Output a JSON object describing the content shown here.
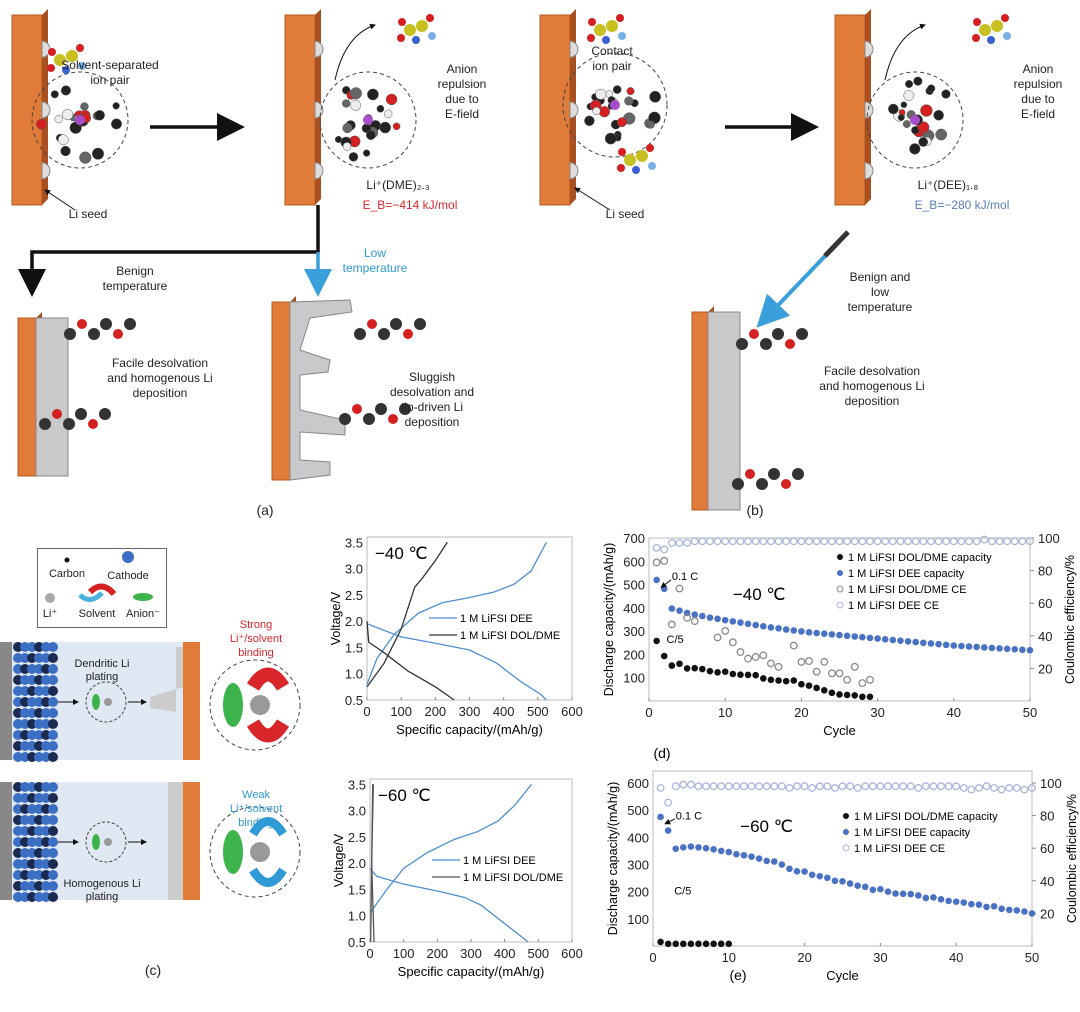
{
  "panel_a": {
    "label": "(a)",
    "ion_pair": "Solvent-separated\nion pair",
    "anion_repulsion": "Anion\nrepulsion\ndue to\nE-field",
    "solvate": "Li⁺(DME)₂.₃",
    "binding_energy": "E_B=−414 kJ/mol",
    "li_seed": "Li seed",
    "benign_temperature": "Benign\ntemperature",
    "low_temperature": "Low\ntemperature",
    "result_benign": "Facile desolvation\nand homogenous Li\ndeposition",
    "result_low": "Sluggish\ndesolvation and\ntip-driven Li\ndeposition"
  },
  "panel_b": {
    "label": "(b)",
    "ion_pair": "Contact\nion pair",
    "anion_repulsion": "Anion\nrepulsion\ndue to\nE-field",
    "solvate": "Li⁺(DEE)₁.₈",
    "binding_energy": "E_B=−280 kJ/mol",
    "li_seed": "Li seed",
    "condition": "Benign and\nlow\ntemperature",
    "result": "Facile desolvation\nand homogenous Li\ndeposition"
  },
  "panel_c": {
    "label": "(c)",
    "legend": {
      "carbon": "Carbon",
      "cathode": "Cathode",
      "li": "Li⁺",
      "solvent": "Solvent",
      "anion": "Anion⁻"
    },
    "dendritic": "Dendritic Li\nplating",
    "strong": "Strong\nLi⁺/solvent\nbinding",
    "homogenous": "Homogenous Li\nplating",
    "weak": "Weak\nLi⁺/solvent\nbinding"
  },
  "colors": {
    "electrode": "#e07b39",
    "dee": "#4a72c4",
    "dee_line": "#4f8fcf",
    "dol": "#111111",
    "ce_dol": "#8a8a8a",
    "ce_dee": "#a9b6dc",
    "strong": "#d8262b",
    "weak": "#2f9ad6"
  },
  "chart_data": [
    {
      "id": "v40",
      "type": "line",
      "annotation": "−40 ℃",
      "xlabel": "Specific capacity/(mAh/g)",
      "ylabel": "Voltage/V",
      "xlim": [
        0,
        600
      ],
      "ylim": [
        0.5,
        3.6
      ],
      "xticks": [
        0,
        100,
        200,
        300,
        400,
        500,
        600
      ],
      "yticks": [
        0.5,
        1.0,
        1.5,
        2.0,
        2.5,
        3.0,
        3.5
      ],
      "legend": "center-right",
      "series": [
        {
          "name": "1 M LiFSI DEE",
          "color": "#4f8fcf",
          "segments": [
            [
              [
                0,
                0.8
              ],
              [
                30,
                1.3
              ],
              [
                80,
                1.75
              ],
              [
                150,
                2.15
              ],
              [
                220,
                2.35
              ],
              [
                300,
                2.45
              ],
              [
                370,
                2.55
              ],
              [
                430,
                2.7
              ],
              [
                480,
                2.95
              ],
              [
                525,
                3.5
              ]
            ],
            [
              [
                0,
                1.95
              ],
              [
                100,
                1.7
              ],
              [
                200,
                1.58
              ],
              [
                300,
                1.45
              ],
              [
                380,
                1.2
              ],
              [
                450,
                0.85
              ],
              [
                510,
                0.6
              ],
              [
                525,
                0.5
              ]
            ]
          ]
        },
        {
          "name": "1 M LiFSI DOL/DME",
          "color": "#333333",
          "segments": [
            [
              [
                0,
                0.75
              ],
              [
                50,
                1.2
              ],
              [
                100,
                1.85
              ],
              [
                140,
                2.65
              ],
              [
                160,
                2.8
              ],
              [
                200,
                3.15
              ],
              [
                235,
                3.5
              ]
            ],
            [
              [
                0,
                2.0
              ],
              [
                5,
                1.6
              ],
              [
                50,
                1.4
              ],
              [
                120,
                1.05
              ],
              [
                200,
                0.75
              ],
              [
                255,
                0.5
              ]
            ]
          ]
        }
      ]
    },
    {
      "id": "v60",
      "type": "line",
      "annotation": "−60 ℃",
      "xlabel": "Specific capacity/(mAh/g)",
      "ylabel": "Voltage/V",
      "xlim": [
        0,
        600
      ],
      "ylim": [
        0.5,
        3.6
      ],
      "xticks": [
        0,
        100,
        200,
        300,
        400,
        500,
        600
      ],
      "yticks": [
        0.5,
        1.0,
        1.5,
        2.0,
        2.5,
        3.0,
        3.5
      ],
      "legend": "center-right",
      "series": [
        {
          "name": "1 M LiFSI DEE",
          "color": "#4f8fcf",
          "segments": [
            [
              [
                0,
                1.05
              ],
              [
                50,
                1.5
              ],
              [
                100,
                1.9
              ],
              [
                170,
                2.2
              ],
              [
                250,
                2.45
              ],
              [
                320,
                2.6
              ],
              [
                380,
                2.8
              ],
              [
                430,
                3.1
              ],
              [
                480,
                3.5
              ]
            ],
            [
              [
                0,
                1.9
              ],
              [
                20,
                1.75
              ],
              [
                100,
                1.6
              ],
              [
                200,
                1.47
              ],
              [
                280,
                1.35
              ],
              [
                330,
                1.2
              ],
              [
                400,
                0.85
              ],
              [
                470,
                0.5
              ]
            ]
          ]
        },
        {
          "name": "1 M LiFSI DOL/DME",
          "color": "#555555",
          "segments": [
            [
              [
                2,
                0.5
              ],
              [
                5,
                2.0
              ],
              [
                10,
                3.5
              ]
            ],
            [
              [
                8,
                3.5
              ],
              [
                5,
                2.0
              ],
              [
                12,
                0.5
              ]
            ]
          ]
        }
      ]
    },
    {
      "id": "c40",
      "type": "scatter",
      "label": "(d)",
      "annotation": "−40 ℃",
      "rate_labels": [
        "0.1 C",
        "C/5"
      ],
      "xlabel": "Cycle",
      "ylabel": "Discharge capacity/(mAh/g)",
      "y2label": "Coulombic efficiency/%",
      "xlim": [
        0,
        50
      ],
      "ylim": [
        0,
        700
      ],
      "y2lim": [
        0,
        100
      ],
      "xticks": [
        0,
        10,
        20,
        30,
        40,
        50
      ],
      "yticks": [
        100,
        200,
        300,
        400,
        500,
        600,
        700
      ],
      "y2ticks": [
        20,
        40,
        60,
        80,
        100
      ],
      "legend": "top-right",
      "series": [
        {
          "name": "1 M LiFSI DOL/DME capacity",
          "axis": "left",
          "marker": "filled",
          "color": "#111111",
          "values": [
            258,
            193,
            152,
            160,
            140,
            141,
            137,
            128,
            123,
            126,
            116,
            113,
            112,
            111,
            97,
            91,
            88,
            85,
            88,
            72,
            66,
            56,
            46,
            35,
            28,
            26,
            24,
            18,
            18
          ]
        },
        {
          "name": "1 M LiFSI DEE capacity",
          "axis": "left",
          "marker": "filled",
          "color": "#4a72c4",
          "values": [
            520,
            482,
            397,
            388,
            378,
            371,
            365,
            358,
            353,
            347,
            342,
            337,
            331,
            326,
            321,
            316,
            312,
            307,
            303,
            299,
            295,
            292,
            289,
            286,
            283,
            280,
            277,
            274,
            271,
            268,
            265,
            262,
            259,
            256,
            253,
            250,
            247,
            244,
            241,
            238,
            236,
            234,
            232,
            230,
            228,
            226,
            224,
            222,
            220,
            218
          ]
        },
        {
          "name": "1 M LiFSI DOL/DME CE",
          "axis": "right",
          "marker": "open",
          "color": "#8a8a8a",
          "values": [
            85,
            86,
            47,
            69,
            51,
            49,
            null,
            null,
            39,
            43,
            36,
            30,
            26,
            27,
            28,
            23,
            21,
            null,
            34,
            24,
            24.5,
            18,
            24,
            17,
            17,
            13,
            21,
            11,
            13
          ]
        },
        {
          "name": "1 M LiFSI DEE CE",
          "axis": "right",
          "marker": "open",
          "color": "#a9b6dc",
          "values": [
            94,
            93,
            97,
            97,
            97,
            98,
            98,
            98,
            98,
            98,
            98,
            98,
            98,
            98,
            98,
            98,
            98,
            98,
            98,
            98,
            98,
            98,
            98,
            98,
            98,
            98,
            98,
            98,
            98,
            98,
            98,
            98,
            98,
            98,
            98,
            98,
            98,
            98,
            98,
            98,
            98,
            98,
            98,
            99,
            98,
            98,
            98,
            98,
            98,
            98
          ]
        }
      ]
    },
    {
      "id": "c60",
      "type": "scatter",
      "label": "(e)",
      "annotation": "−60 ℃",
      "rate_labels": [
        "0.1 C",
        "C/5"
      ],
      "xlabel": "Cycle",
      "ylabel": "Discharge capacity/(mAh/g)",
      "y2label": "Coulombic efficiency/%",
      "xlim": [
        0,
        50
      ],
      "ylim": [
        0,
        600
      ],
      "y2lim": [
        0,
        100
      ],
      "xticks": [
        0,
        10,
        20,
        30,
        40,
        50
      ],
      "yticks": [
        100,
        200,
        300,
        400,
        500,
        600
      ],
      "y2ticks": [
        20,
        40,
        60,
        80,
        100
      ],
      "legend": "top-right",
      "series": [
        {
          "name": "1 M LiFSI DOL/DME capacity",
          "axis": "left",
          "marker": "filled",
          "color": "#111111",
          "values": [
            15,
            8,
            8,
            8,
            8,
            8,
            8,
            8,
            8,
            8
          ]
        },
        {
          "name": "1 M LiFSI DEE capacity",
          "axis": "left",
          "marker": "filled",
          "color": "#4a72c4",
          "values": [
            475,
            425,
            358,
            363,
            366,
            363,
            360,
            356,
            350,
            346,
            338,
            334,
            329,
            322,
            313,
            311,
            300,
            284,
            275,
            274,
            262,
            257,
            251,
            240,
            238,
            230,
            222,
            218,
            207,
            209,
            200,
            193,
            192,
            191,
            186,
            177,
            179,
            172,
            166,
            163,
            160,
            154,
            152,
            144,
            146,
            137,
            133,
            131,
            127,
            120
          ]
        },
        {
          "name": "1 M LiFSI DEE CE",
          "axis": "right",
          "marker": "open",
          "color": "#a9b6dc",
          "values": [
            97,
            88,
            98,
            99,
            99,
            98,
            98,
            98,
            98,
            98,
            98,
            98,
            98,
            98,
            98,
            98,
            98,
            97,
            98,
            98,
            97,
            98,
            98,
            97,
            98,
            98,
            97,
            98,
            98,
            98,
            98,
            98,
            98,
            98,
            97,
            98,
            98,
            98,
            98,
            98,
            97,
            96,
            97,
            98,
            97,
            96,
            97,
            97,
            96,
            97
          ]
        }
      ]
    }
  ]
}
